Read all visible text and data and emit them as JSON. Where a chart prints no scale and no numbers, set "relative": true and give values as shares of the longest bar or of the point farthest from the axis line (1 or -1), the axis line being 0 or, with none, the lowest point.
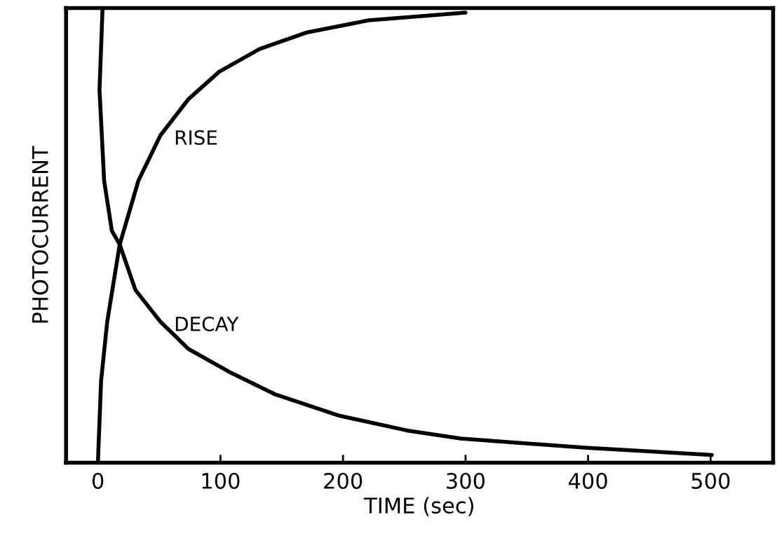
{
  "chart_data": {
    "type": "line",
    "relative": true,
    "xlabel": "TIME (sec)",
    "ylabel": "PHOTOCURRENT",
    "xlim": [
      -26,
      551
    ],
    "xticks": [
      0,
      100,
      200,
      300,
      400,
      500
    ],
    "grid": false,
    "legend": false,
    "marker": "none",
    "line_style": "solid",
    "series": [
      {
        "name": "RISE",
        "color": "#000000",
        "x": [
          0,
          2.6,
          7.6,
          17.8,
          33,
          51,
          74,
          99,
          132,
          170,
          221,
          300
        ],
        "values": [
          0,
          0.18,
          0.31,
          0.48,
          0.62,
          0.72,
          0.8,
          0.86,
          0.91,
          0.946,
          0.973,
          0.99
        ]
      },
      {
        "name": "DECAY",
        "color": "#000000",
        "x": [
          3.8,
          1.3,
          5.1,
          11.4,
          17.8,
          30.6,
          51,
          74,
          107,
          145,
          196,
          252,
          296,
          397,
          501
        ],
        "values": [
          1,
          0.82,
          0.62,
          0.51,
          0.48,
          0.38,
          0.31,
          0.25,
          0.2,
          0.15,
          0.104,
          0.071,
          0.053,
          0.033,
          0.017
        ]
      }
    ]
  }
}
